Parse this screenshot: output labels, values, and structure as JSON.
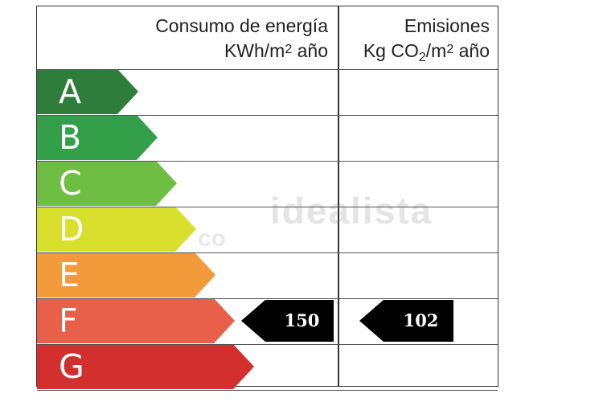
{
  "header": {
    "energy_title": "Consumo de energía",
    "energy_unit_prefix": "KWh/m",
    "energy_unit_exp": "2",
    "energy_unit_suffix": " año",
    "emissions_title": "Emisiones",
    "emissions_unit_prefix": "Kg CO",
    "emissions_unit_sub": "2",
    "emissions_unit_mid": "/m",
    "emissions_unit_exp": "2",
    "emissions_unit_suffix": " año"
  },
  "ratings": [
    {
      "letter": "A",
      "color": "#2e7d3a"
    },
    {
      "letter": "B",
      "color": "#33a049"
    },
    {
      "letter": "C",
      "color": "#6fbe44"
    },
    {
      "letter": "D",
      "color": "#d8df2d"
    },
    {
      "letter": "E",
      "color": "#f39a3b"
    },
    {
      "letter": "F",
      "color": "#e9604a"
    },
    {
      "letter": "G",
      "color": "#d42f2f"
    }
  ],
  "energy_indicator": {
    "value": "150",
    "rating": "F",
    "color": "#000000"
  },
  "emissions_indicator": {
    "value": "102",
    "rating": "F",
    "color": "#000000"
  },
  "watermark": {
    "text": "idealista",
    "fragment": "co"
  }
}
